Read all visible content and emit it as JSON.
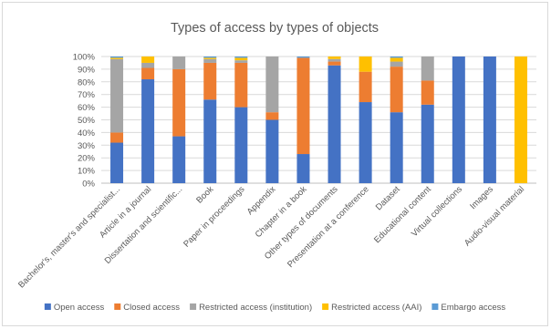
{
  "chart_data": {
    "type": "bar",
    "stacked": true,
    "percent": true,
    "title": "Types of access by types of objects",
    "xlabel": "",
    "ylabel": "",
    "ylim": [
      0,
      100
    ],
    "yticks": [
      "0%",
      "10%",
      "20%",
      "30%",
      "40%",
      "50%",
      "60%",
      "70%",
      "80%",
      "90%",
      "100%"
    ],
    "grid": true,
    "legend_position": "bottom",
    "categories": [
      "Bachelor's, master's and specialist...",
      "Article in a journal",
      "Dissertation and scientific...",
      "Book",
      "Paper in proceedings",
      "Appendix",
      "Chapter in a book",
      "Other types of documents",
      "Presentation at a conference",
      "Dataset",
      "Educational content",
      "Virtual collections",
      "Images",
      "Audio-visual material"
    ],
    "series": [
      {
        "name": "Open access",
        "color": "#4472c4",
        "values": [
          32,
          82,
          37,
          66,
          60,
          50,
          23,
          93,
          64,
          56,
          62,
          100,
          100,
          0
        ]
      },
      {
        "name": "Closed access",
        "color": "#ed7d31",
        "values": [
          8,
          9,
          53,
          29,
          35,
          6,
          76,
          3,
          24,
          36,
          19,
          0,
          0,
          0
        ]
      },
      {
        "name": "Restricted access (institution)",
        "color": "#a5a5a5",
        "values": [
          58,
          4,
          10,
          3,
          2,
          44,
          0,
          2,
          0,
          4,
          19,
          0,
          0,
          0
        ]
      },
      {
        "name": "Restricted access (AAI)",
        "color": "#ffc000",
        "values": [
          1,
          5,
          0,
          1,
          2,
          0,
          0,
          2,
          12,
          3,
          0,
          0,
          0,
          100
        ]
      },
      {
        "name": "Embargo access",
        "color": "#5b9bd5",
        "values": [
          1,
          0,
          0,
          1,
          1,
          0,
          1,
          0,
          0,
          1,
          0,
          0,
          0,
          0
        ]
      }
    ]
  }
}
